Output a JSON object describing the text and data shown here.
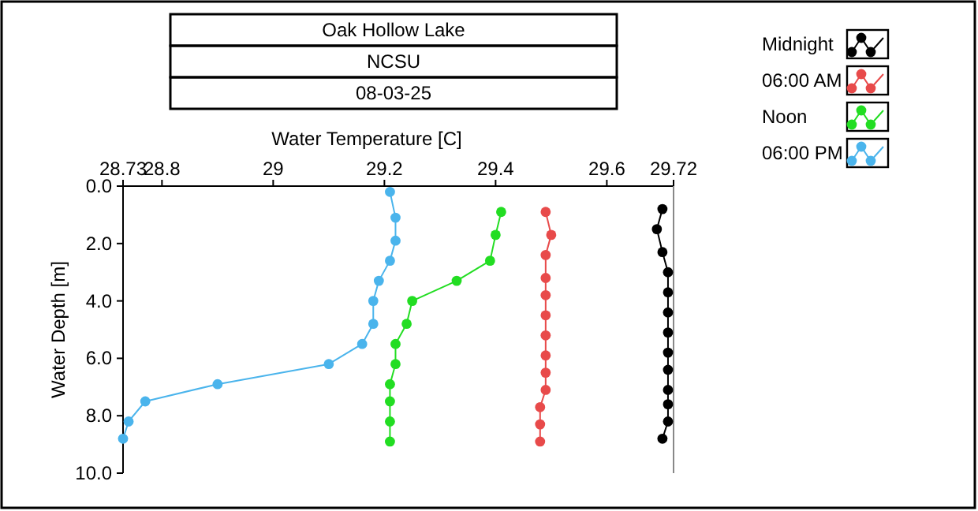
{
  "chart_data": {
    "type": "line",
    "title": "Oak Hollow Lake",
    "subtitle": "NCSU",
    "annotations": [
      "08-03-25"
    ],
    "xlabel": "Water Temperature [C]",
    "ylabel": "Water Depth [m]",
    "xlim": [
      28.73,
      29.72
    ],
    "xticks": [
      28.73,
      28.8,
      29,
      29.2,
      29.4,
      29.6,
      29.72
    ],
    "ylim": [
      10,
      0
    ],
    "yticks": [
      {
        "value": 0,
        "label": "0.0"
      },
      {
        "value": 2,
        "label": "2.0"
      },
      {
        "value": 4,
        "label": "4.0"
      },
      {
        "value": 6,
        "label": "6.0"
      },
      {
        "value": 8,
        "label": "8.0"
      },
      {
        "value": 10,
        "label": "10.0"
      }
    ],
    "legend": "top right",
    "marker": "circle",
    "line_style": "solid",
    "grid": false,
    "series": [
      {
        "name": "Midnight",
        "color": "#000000",
        "x": [
          29.7,
          29.69,
          29.7,
          29.71,
          29.71,
          29.71,
          29.71,
          29.71,
          29.71,
          29.71,
          29.71,
          29.71,
          29.7
        ],
        "values": [
          0.8,
          1.5,
          2.3,
          3.0,
          3.7,
          4.4,
          5.1,
          5.8,
          6.4,
          7.1,
          7.6,
          8.2,
          8.8
        ]
      },
      {
        "name": "06:00 AM",
        "color": "#e84a4a",
        "x": [
          29.49,
          29.5,
          29.49,
          29.49,
          29.49,
          29.49,
          29.49,
          29.49,
          29.49,
          29.49,
          29.48,
          29.48,
          29.48
        ],
        "values": [
          0.9,
          1.7,
          2.4,
          3.2,
          3.8,
          4.5,
          5.2,
          5.9,
          6.5,
          7.1,
          7.7,
          8.3,
          8.9
        ]
      },
      {
        "name": "Noon",
        "color": "#22dd22",
        "x": [
          29.41,
          29.4,
          29.39,
          29.33,
          29.25,
          29.24,
          29.22,
          29.22,
          29.21,
          29.21,
          29.21,
          29.21
        ],
        "values": [
          0.9,
          1.7,
          2.6,
          3.3,
          4.0,
          4.8,
          5.5,
          6.2,
          6.9,
          7.5,
          8.2,
          8.9
        ]
      },
      {
        "name": "06:00 PM",
        "color": "#4ab4ec",
        "x": [
          29.21,
          29.22,
          29.22,
          29.21,
          29.19,
          29.18,
          29.18,
          29.16,
          29.1,
          28.9,
          28.77,
          28.74,
          28.73
        ],
        "values": [
          0.2,
          1.1,
          1.9,
          2.6,
          3.3,
          4.0,
          4.8,
          5.5,
          6.2,
          6.9,
          7.5,
          8.2,
          8.8
        ]
      }
    ]
  }
}
